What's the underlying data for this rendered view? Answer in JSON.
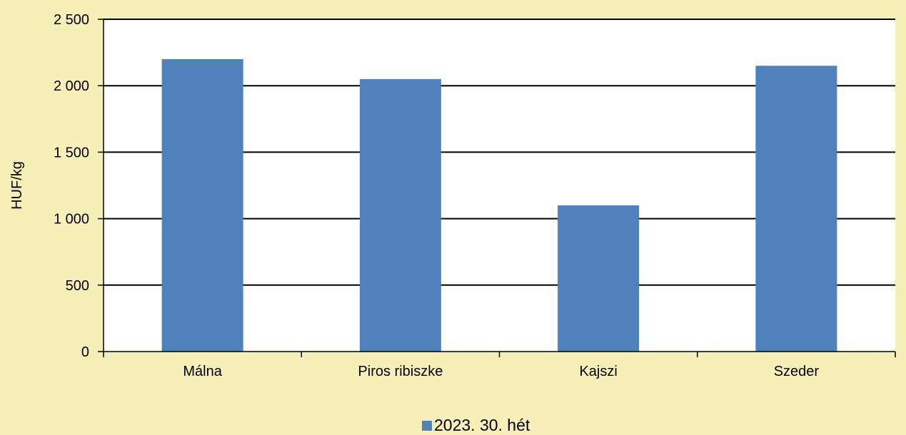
{
  "chart_data": {
    "type": "bar",
    "title": "",
    "xlabel": "",
    "ylabel": "HUF/kg",
    "categories": [
      "Málna",
      "Piros ribiszke",
      "Kajszi",
      "Szeder"
    ],
    "series": [
      {
        "name": "2023. 30. hét",
        "values": [
          2200,
          2050,
          1100,
          2150
        ],
        "color": "#4f81bd"
      }
    ],
    "ylim": [
      0,
      2500
    ],
    "yticks": [
      0,
      500,
      1000,
      1500,
      2000,
      2500
    ],
    "ytick_labels": [
      "0",
      "500",
      "1 000",
      "1 500",
      "2 000",
      "2 500"
    ],
    "grid": true,
    "legend_position": "bottom",
    "colors": {
      "background": "#f7efb8",
      "plot_background": "#ffffff",
      "bar": "#4f81bd",
      "grid": "#000000"
    }
  }
}
